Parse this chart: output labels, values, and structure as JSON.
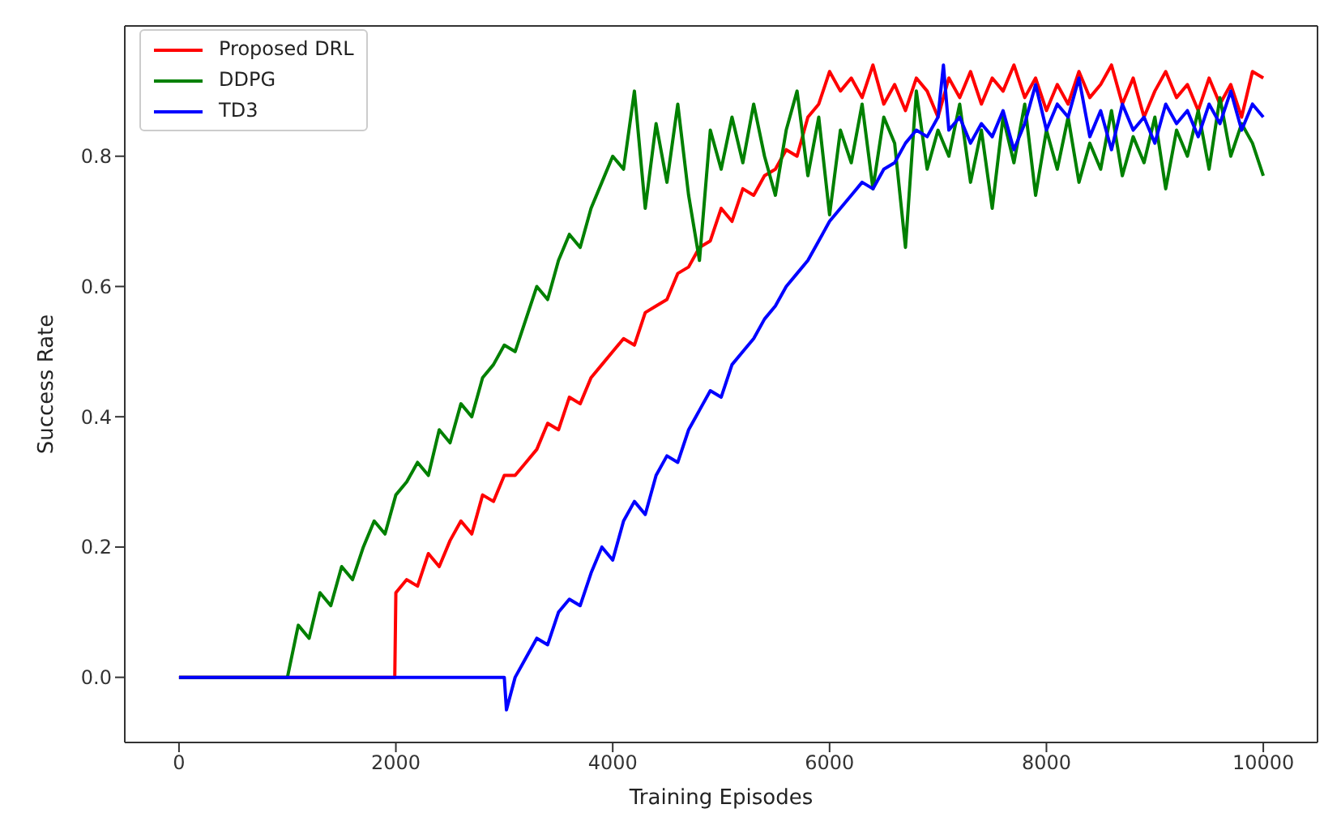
{
  "chart_data": {
    "type": "line",
    "xlabel": "Training Episodes",
    "ylabel": "Success Rate",
    "legend": "top left",
    "grid": false,
    "marker": "none",
    "line_style": "solid",
    "xlim": [
      -500,
      10500
    ],
    "xticks": [
      0,
      2000,
      4000,
      6000,
      8000,
      10000
    ],
    "ylim": [
      -0.1,
      1.0
    ],
    "yticks": [
      {
        "value": 0,
        "label": "0.0"
      },
      {
        "value": 0.2,
        "label": "0.2"
      },
      {
        "value": 0.4,
        "label": "0.4"
      },
      {
        "value": 0.6,
        "label": "0.6"
      },
      {
        "value": 0.8,
        "label": "0.8"
      }
    ],
    "series": [
      {
        "name": "Proposed DRL",
        "color": "#ff0000",
        "x": [
          0,
          1990,
          2000,
          2100,
          2200,
          2300,
          2400,
          2500,
          2600,
          2700,
          2800,
          2900,
          3000,
          3100,
          3200,
          3300,
          3400,
          3500,
          3600,
          3700,
          3800,
          3900,
          4000,
          4100,
          4200,
          4300,
          4400,
          4500,
          4600,
          4700,
          4800,
          4900,
          5000,
          5100,
          5200,
          5300,
          5400,
          5500,
          5600,
          5700,
          5800,
          5900,
          6000,
          6100,
          6200,
          6300,
          6400,
          6500,
          6600,
          6700,
          6800,
          6900,
          7000,
          7100,
          7200,
          7300,
          7400,
          7500,
          7600,
          7700,
          7800,
          7900,
          8000,
          8100,
          8200,
          8300,
          8400,
          8500,
          8600,
          8700,
          8800,
          8900,
          9000,
          9100,
          9200,
          9300,
          9400,
          9500,
          9600,
          9700,
          9800,
          9900,
          10000
        ],
        "values": [
          0,
          0,
          0.13,
          0.15,
          0.14,
          0.19,
          0.17,
          0.21,
          0.24,
          0.22,
          0.28,
          0.27,
          0.31,
          0.31,
          0.33,
          0.35,
          0.39,
          0.38,
          0.43,
          0.42,
          0.46,
          0.48,
          0.5,
          0.52,
          0.51,
          0.56,
          0.57,
          0.58,
          0.62,
          0.63,
          0.66,
          0.67,
          0.72,
          0.7,
          0.75,
          0.74,
          0.77,
          0.78,
          0.81,
          0.8,
          0.86,
          0.88,
          0.93,
          0.9,
          0.92,
          0.89,
          0.94,
          0.88,
          0.91,
          0.87,
          0.92,
          0.9,
          0.86,
          0.92,
          0.89,
          0.93,
          0.88,
          0.92,
          0.9,
          0.94,
          0.89,
          0.92,
          0.87,
          0.91,
          0.88,
          0.93,
          0.89,
          0.91,
          0.94,
          0.88,
          0.92,
          0.86,
          0.9,
          0.93,
          0.89,
          0.91,
          0.87,
          0.92,
          0.88,
          0.91,
          0.86,
          0.93,
          0.92
        ]
      },
      {
        "name": "DDPG",
        "color": "#008000",
        "x": [
          0,
          1000,
          1100,
          1200,
          1300,
          1400,
          1500,
          1600,
          1700,
          1800,
          1900,
          2000,
          2100,
          2200,
          2300,
          2400,
          2500,
          2600,
          2700,
          2800,
          2900,
          3000,
          3100,
          3200,
          3300,
          3400,
          3500,
          3600,
          3700,
          3800,
          3900,
          4000,
          4100,
          4200,
          4300,
          4400,
          4500,
          4600,
          4700,
          4800,
          4900,
          5000,
          5100,
          5200,
          5300,
          5400,
          5500,
          5600,
          5700,
          5800,
          5900,
          6000,
          6100,
          6200,
          6300,
          6400,
          6500,
          6600,
          6700,
          6800,
          6900,
          7000,
          7100,
          7200,
          7300,
          7400,
          7500,
          7600,
          7700,
          7800,
          7900,
          8000,
          8100,
          8200,
          8300,
          8400,
          8500,
          8600,
          8700,
          8800,
          8900,
          9000,
          9100,
          9200,
          9300,
          9400,
          9500,
          9600,
          9700,
          9800,
          9900,
          10000
        ],
        "values": [
          0,
          0,
          0.08,
          0.06,
          0.13,
          0.11,
          0.17,
          0.15,
          0.2,
          0.24,
          0.22,
          0.28,
          0.3,
          0.33,
          0.31,
          0.38,
          0.36,
          0.42,
          0.4,
          0.46,
          0.48,
          0.51,
          0.5,
          0.55,
          0.6,
          0.58,
          0.64,
          0.68,
          0.66,
          0.72,
          0.76,
          0.8,
          0.78,
          0.9,
          0.72,
          0.85,
          0.76,
          0.88,
          0.74,
          0.64,
          0.84,
          0.78,
          0.86,
          0.79,
          0.88,
          0.8,
          0.74,
          0.84,
          0.9,
          0.77,
          0.86,
          0.71,
          0.84,
          0.79,
          0.88,
          0.75,
          0.86,
          0.82,
          0.66,
          0.9,
          0.78,
          0.84,
          0.8,
          0.88,
          0.76,
          0.84,
          0.72,
          0.86,
          0.79,
          0.88,
          0.74,
          0.84,
          0.78,
          0.86,
          0.76,
          0.82,
          0.78,
          0.87,
          0.77,
          0.83,
          0.79,
          0.86,
          0.75,
          0.84,
          0.8,
          0.87,
          0.78,
          0.89,
          0.8,
          0.85,
          0.82,
          0.77
        ]
      },
      {
        "name": "TD3",
        "color": "#0000ff",
        "x": [
          0,
          3000,
          3020,
          3100,
          3200,
          3300,
          3400,
          3500,
          3600,
          3700,
          3800,
          3900,
          4000,
          4100,
          4200,
          4300,
          4400,
          4500,
          4600,
          4700,
          4800,
          4900,
          5000,
          5100,
          5200,
          5300,
          5400,
          5500,
          5600,
          5700,
          5800,
          5900,
          6000,
          6100,
          6200,
          6300,
          6400,
          6500,
          6600,
          6700,
          6800,
          6900,
          7000,
          7050,
          7100,
          7200,
          7300,
          7400,
          7500,
          7600,
          7700,
          7800,
          7900,
          8000,
          8100,
          8200,
          8300,
          8400,
          8500,
          8600,
          8700,
          8800,
          8900,
          9000,
          9100,
          9200,
          9300,
          9400,
          9500,
          9600,
          9700,
          9800,
          9900,
          10000
        ],
        "values": [
          0,
          0,
          -0.05,
          0,
          0.03,
          0.06,
          0.05,
          0.1,
          0.12,
          0.11,
          0.16,
          0.2,
          0.18,
          0.24,
          0.27,
          0.25,
          0.31,
          0.34,
          0.33,
          0.38,
          0.41,
          0.44,
          0.43,
          0.48,
          0.5,
          0.52,
          0.55,
          0.57,
          0.6,
          0.62,
          0.64,
          0.67,
          0.7,
          0.72,
          0.74,
          0.76,
          0.75,
          0.78,
          0.79,
          0.82,
          0.84,
          0.83,
          0.86,
          0.94,
          0.84,
          0.86,
          0.82,
          0.85,
          0.83,
          0.87,
          0.81,
          0.85,
          0.91,
          0.84,
          0.88,
          0.86,
          0.92,
          0.83,
          0.87,
          0.81,
          0.88,
          0.84,
          0.86,
          0.82,
          0.88,
          0.85,
          0.87,
          0.83,
          0.88,
          0.85,
          0.9,
          0.84,
          0.88,
          0.86
        ]
      }
    ]
  }
}
